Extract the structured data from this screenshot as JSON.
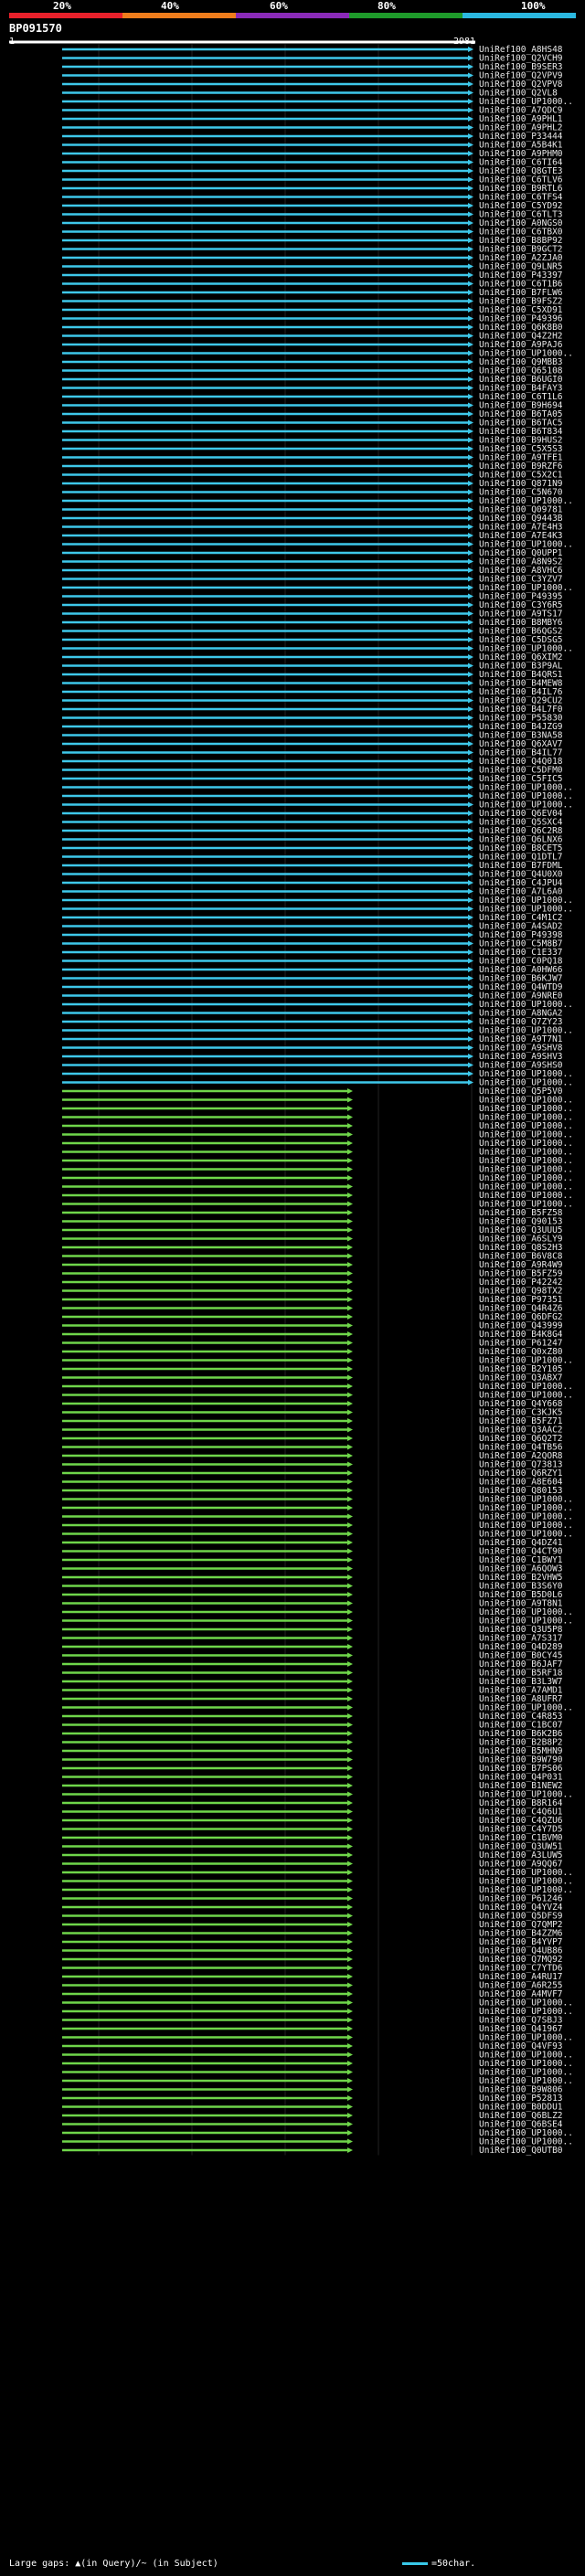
{
  "query": {
    "id": "BP091570",
    "range_start": "1",
    "range_end": "2981"
  },
  "identity_scale": {
    "labels": [
      "20%",
      "40%",
      "60%",
      "80%",
      "100%"
    ],
    "colors": [
      "#e8212b",
      "#f07d1c",
      "#8a2ab8",
      "#1e9a2a",
      "#2bb8e0"
    ]
  },
  "footer": {
    "gaps_text": "Large gaps: ▲(in Query)/~ (in Subject)",
    "scale_text": "=50char."
  },
  "chart_data": {
    "type": "alignment-map",
    "query_length": 2981,
    "hits": [
      "UniRef100_A8HS48",
      "UniRef100_Q2VCH9",
      "UniRef100_B9SER3",
      "UniRef100_Q2VPV9",
      "UniRef100_Q2VPV8",
      "UniRef100_Q2VL8",
      "UniRef100_UP1000..",
      "UniRef100_A7QDC9",
      "UniRef100_A9PHL1",
      "UniRef100_A9PHL2",
      "UniRef100_P33444",
      "UniRef100_A5B4K1",
      "UniRef100_A9PHM0",
      "UniRef100_C6TI64",
      "UniRef100_Q8GTE3",
      "UniRef100_C6TLV6",
      "UniRef100_B9RTL6",
      "UniRef100_C6TFS4",
      "UniRef100_C5YD92",
      "UniRef100_C6TLT3",
      "UniRef100_A0NGS0",
      "UniRef100_C6TBX0",
      "UniRef100_B8BP92",
      "UniRef100_B9GCT2",
      "UniRef100_A2ZJA0",
      "UniRef100_Q9LNR5",
      "UniRef100_P43397",
      "UniRef100_C6T1B6",
      "UniRef100_B7FLW6",
      "UniRef100_B9FSZ2",
      "UniRef100_C5XD91",
      "UniRef100_P49396",
      "UniRef100_Q6K8B0",
      "UniRef100_Q4Z2H2",
      "UniRef100_A9PAJ6",
      "UniRef100_UP1000..",
      "UniRef100_Q9MBB3",
      "UniRef100_Q65108",
      "UniRef100_B6UGI0",
      "UniRef100_B4FAY3",
      "UniRef100_C6T1L6",
      "UniRef100_B9H694",
      "UniRef100_B6TA05",
      "UniRef100_B6TAC5",
      "UniRef100_B6T834",
      "UniRef100_B9HUS2",
      "UniRef100_C5X5S3",
      "UniRef100_A9TFE1",
      "UniRef100_B9RZF6",
      "UniRef100_C5X2C1",
      "UniRef100_Q871N9",
      "UniRef100_C5N670",
      "UniRef100_UP1000..",
      "UniRef100_Q09781",
      "UniRef100_Q9443B",
      "UniRef100_A7E4H3",
      "UniRef100_A7E4K3",
      "UniRef100_UP1000..",
      "UniRef100_Q0UPP1",
      "UniRef100_A8N9S2",
      "UniRef100_A8VHC6",
      "UniRef100_C3YZV7",
      "UniRef100_UP1000..",
      "UniRef100_P49395",
      "UniRef100_C3Y6R5",
      "UniRef100_A9TS17",
      "UniRef100_B8MBY6",
      "UniRef100_B6QGS2",
      "UniRef100_C5DSG5",
      "UniRef100_UP1000..",
      "UniRef100_Q6XIM2",
      "UniRef100_B3P9AL",
      "UniRef100_B4QRS1",
      "UniRef100_B4MEW8",
      "UniRef100_B4IL76",
      "UniRef100_Q29CU2",
      "UniRef100_B4L7F0",
      "UniRef100_P55830",
      "UniRef100_B4JZG9",
      "UniRef100_B3NA58",
      "UniRef100_Q6XAV7",
      "UniRef100_B4IL77",
      "UniRef100_Q4Q018",
      "UniRef100_C5DFM0",
      "UniRef100_C5FIC5",
      "UniRef100_UP1000..",
      "UniRef100_UP1000..",
      "UniRef100_UP1000..",
      "UniRef100_Q6EV04",
      "UniRef100_Q5SXC4",
      "UniRef100_Q6C2R8",
      "UniRef100_Q6LNX6",
      "UniRef100_B8CET5",
      "UniRef100_Q1DTL7",
      "UniRef100_B7FDML",
      "UniRef100_Q4U0X0",
      "UniRef100_C4JPU4",
      "UniRef100_A7L6A0",
      "UniRef100_UP1000..",
      "UniRef100_UP1000..",
      "UniRef100_C4M1C2",
      "UniRef100_A4SAD2",
      "UniRef100_P49398",
      "UniRef100_C5M8B7",
      "UniRef100_C1E337",
      "UniRef100_C0PQ18",
      "UniRef100_A0HW66",
      "UniRef100_B6KJW7",
      "UniRef100_Q4WTD9",
      "UniRef100_A9NRE0",
      "UniRef100_UP1000..",
      "UniRef100_A8NGA2",
      "UniRef100_Q7ZY23",
      "UniRef100_UP1000..",
      "UniRef100_A9T7N1",
      "UniRef100_A9SHV8",
      "UniRef100_A9SHV3",
      "UniRef100_A9SHS0",
      "UniRef100_UP1000..",
      "UniRef100_UP1000..",
      "UniRef100_Q5P5V0",
      "UniRef100_UP1000..",
      "UniRef100_UP1000..",
      "UniRef100_UP1000..",
      "UniRef100_UP1000..",
      "UniRef100_UP1000..",
      "UniRef100_UP1000..",
      "UniRef100_UP1000..",
      "UniRef100_UP1000..",
      "UniRef100_UP1000..",
      "UniRef100_UP1000..",
      "UniRef100_UP1000..",
      "UniRef100_UP1000..",
      "UniRef100_UP1000..",
      "UniRef100_B5FZ58",
      "UniRef100_Q90153",
      "UniRef100_Q3UUU5",
      "UniRef100_A6SLY9",
      "UniRef100_Q8S2H3",
      "UniRef100_B6V8C8",
      "UniRef100_A9R4W9",
      "UniRef100_B5FZ59",
      "UniRef100_P42242",
      "UniRef100_Q98TX2",
      "UniRef100_P97351",
      "UniRef100_Q4R4Z6",
      "UniRef100_Q6DFG2",
      "UniRef100_Q43999",
      "UniRef100_B4K8G4",
      "UniRef100_P61247",
      "UniRef100_Q0xZ80",
      "UniRef100_UP1000..",
      "UniRef100_B2Y105",
      "UniRef100_Q3ABX7",
      "UniRef100_UP1000..",
      "UniRef100_UP1000..",
      "UniRef100_Q4Y668",
      "UniRef100_C3KJK5",
      "UniRef100_B5FZ71",
      "UniRef100_Q3AAC2",
      "UniRef100_Q6Q2T2",
      "UniRef100_Q4TB56",
      "UniRef100_A2QOR8",
      "UniRef100_Q73813",
      "UniRef100_Q6RZY1",
      "UniRef100_A8E604",
      "UniRef100_Q80153",
      "UniRef100_UP1000..",
      "UniRef100_UP1000..",
      "UniRef100_UP1000..",
      "UniRef100_UP1000..",
      "UniRef100_UP1000..",
      "UniRef100_Q4DZ41",
      "UniRef100_Q4CT90",
      "UniRef100_C1BWY1",
      "UniRef100_A6QOW3",
      "UniRef100_B2VHW5",
      "UniRef100_B3S6Y0",
      "UniRef100_B5D0L6",
      "UniRef100_A9T8N1",
      "UniRef100_UP1000..",
      "UniRef100_UP1000..",
      "UniRef100_Q3U5P8",
      "UniRef100_A7S317",
      "UniRef100_Q4D289",
      "UniRef100_B0CY45",
      "UniRef100_B6JAF7",
      "UniRef100_B5RF18",
      "UniRef100_B3L3W7",
      "UniRef100_A7AMD1",
      "UniRef100_A8UFR7",
      "UniRef100_UP1000..",
      "UniRef100_C4R853",
      "UniRef100_C1BC07",
      "UniRef100_B6K2B6",
      "UniRef100_B2B8P2",
      "UniRef100_B5MHN9",
      "UniRef100_B9W790",
      "UniRef100_B7PS06",
      "UniRef100_Q4P031",
      "UniRef100_B1NEW2",
      "UniRef100_UP1000..",
      "UniRef100_B8R164",
      "UniRef100_C4Q6U1",
      "UniRef100_C4QZU6",
      "UniRef100_C4Y7D5",
      "UniRef100_C1BVM0",
      "UniRef100_Q3UW51",
      "UniRef100_A3LUW5",
      "UniRef100_A9QQ67",
      "UniRef100_UP1000..",
      "UniRef100_UP1000..",
      "UniRef100_UP1000..",
      "UniRef100_P61246",
      "UniRef100_Q4YVZ4",
      "UniRef100_Q5DFS9",
      "UniRef100_Q7QMP2",
      "UniRef100_B4ZZM6",
      "UniRef100_B4YVP7",
      "UniRef100_Q4UB86",
      "UniRef100_Q7MQ92",
      "UniRef100_C7YTD6",
      "UniRef100_A4RU17",
      "UniRef100_A6R255",
      "UniRef100_A4MVF7",
      "UniRef100_UP1000..",
      "UniRef100_UP1000..",
      "UniRef100_Q7SBJ3",
      "UniRef100_Q41967",
      "UniRef100_UP1000..",
      "UniRef100_Q4VF93",
      "UniRef100_UP1000..",
      "UniRef100_UP1000..",
      "UniRef100_UP1000..",
      "UniRef100_UP1000..",
      "UniRef100_B9W806",
      "UniRef100_P52813",
      "UniRef100_B0DDU1",
      "UniRef100_Q6BLZ2",
      "UniRef100_Q6BSE4",
      "UniRef100_UP1000..",
      "UniRef100_UP1000..",
      "UniRef100_Q0UTB0"
    ]
  }
}
